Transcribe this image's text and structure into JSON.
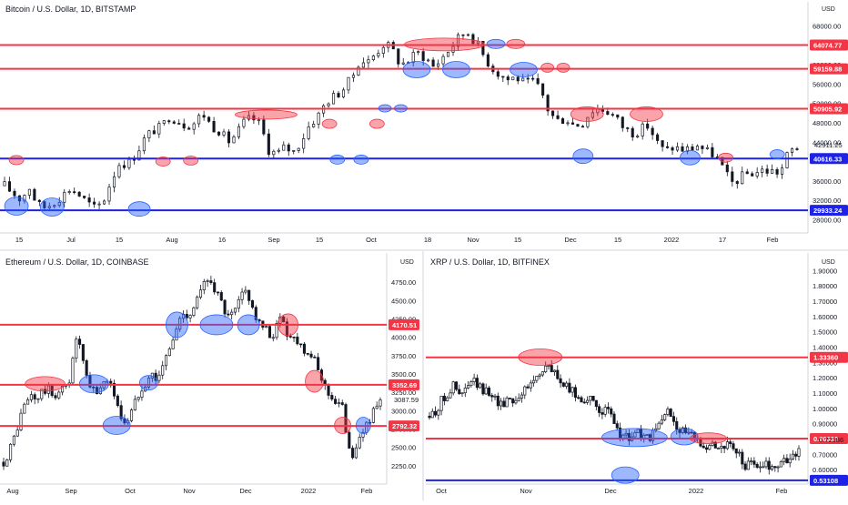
{
  "colors": {
    "support_red": "#f23645",
    "support_blue": "#1e22e6",
    "zone_red_fill": "rgba(242,54,69,0.45)",
    "zone_blue_fill": "rgba(41,98,255,0.45)",
    "candle": "#131722",
    "axis_line": "#d1d4dc"
  },
  "chart_data": [
    {
      "type": "candlestick",
      "title": "Bitcoin / U.S. Dollar, 1D, BITSTAMP",
      "currency_label": "USD",
      "ylim": [
        26000,
        70000
      ],
      "x_tick_labels": [
        "15",
        "Jul",
        "15",
        "Aug",
        "16",
        "Sep",
        "15",
        "Oct",
        "18",
        "Nov",
        "15",
        "Dec",
        "15",
        "2022",
        "17",
        "Feb"
      ],
      "y_tick_labels": [
        "68000.00",
        "64000.00",
        "60000.00",
        "56000.00",
        "52000.00",
        "48000.00",
        "44000.00",
        "36000.00",
        "32000.00",
        "28000.00"
      ],
      "y_tick_values": [
        68000,
        64000,
        60000,
        56000,
        52000,
        48000,
        44000,
        36000,
        32000,
        28000
      ],
      "current_price": "42911.25",
      "levels": [
        {
          "value": 64074.77,
          "label": "64074.77",
          "color": "red"
        },
        {
          "value": 59159.88,
          "label": "59159.88",
          "color": "red"
        },
        {
          "value": 50905.92,
          "label": "50905.92",
          "color": "red"
        },
        {
          "value": 40616.33,
          "label": "40616.33",
          "color": "blue"
        },
        {
          "value": 29933.24,
          "label": "29933.24",
          "color": "blue"
        }
      ],
      "price_path": [
        35000,
        33500,
        32200,
        34800,
        31000,
        30500,
        31800,
        33000,
        34500,
        33200,
        31500,
        30200,
        32000,
        36500,
        40000,
        39500,
        42000,
        44800,
        46500,
        47000,
        49500,
        48500,
        47500,
        48000,
        50000,
        47500,
        46500,
        44000,
        45500,
        48000,
        49000,
        47500,
        42500,
        41500,
        43000,
        42000,
        44500,
        47800,
        49500,
        52500,
        53500,
        55000,
        57000,
        61000,
        60500,
        62500,
        64500,
        63000,
        60000,
        61000,
        62500,
        61500,
        59500,
        61500,
        63500,
        65500,
        67000,
        65000,
        62000,
        59500,
        58000,
        57000,
        57500,
        56000,
        56500,
        54500,
        50000,
        48500,
        49000,
        47500,
        48000,
        50500,
        51000,
        50500,
        49000,
        47000,
        46000,
        46500,
        47500,
        44000,
        42000,
        43000,
        42500,
        42500,
        43500,
        42000,
        41500,
        38500,
        35500,
        36500,
        37500,
        37800,
        38200,
        38000,
        37800,
        42000,
        42911
      ]
    },
    {
      "type": "candlestick",
      "title": "Ethereum / U.S. Dollar, 1D, COINBASE",
      "currency_label": "USD",
      "ylim": [
        2050,
        4950
      ],
      "x_tick_labels": [
        "Aug",
        "Sep",
        "Oct",
        "Nov",
        "Dec",
        "2022",
        "Feb"
      ],
      "y_tick_labels": [
        "4750.00",
        "4500.00",
        "4250.00",
        "4000.00",
        "3750.00",
        "3500.00",
        "3250.00",
        "3000.00",
        "2750.00",
        "2500.00",
        "2250.00"
      ],
      "y_tick_values": [
        4750,
        4500,
        4250,
        4000,
        3750,
        3500,
        3250,
        3000,
        2750,
        2500,
        2250
      ],
      "current_price": "3087.59",
      "levels": [
        {
          "value": 4170.51,
          "label": "4170.51",
          "color": "red"
        },
        {
          "value": 3352.69,
          "label": "3352.69",
          "color": "red"
        },
        {
          "value": 2792.32,
          "label": "2792.32",
          "color": "red"
        }
      ],
      "price_path": [
        2300,
        2450,
        2650,
        2900,
        3100,
        3200,
        3150,
        3250,
        3300,
        3200,
        3250,
        3300,
        3400,
        3950,
        3900,
        3450,
        3300,
        3250,
        3350,
        3450,
        3300,
        3000,
        2850,
        2900,
        3100,
        3300,
        3400,
        3500,
        3450,
        3550,
        3800,
        3950,
        4200,
        4350,
        4300,
        4450,
        4600,
        4750,
        4800,
        4600,
        4450,
        4250,
        4300,
        4450,
        4650,
        4550,
        4300,
        4150,
        4100,
        4000,
        4150,
        4300,
        4050,
        4000,
        3950,
        3850,
        3800,
        3650,
        3500,
        3300,
        3200,
        3100,
        3050,
        2600,
        2400,
        2550,
        2750,
        2900,
        3000,
        3087
      ]
    },
    {
      "type": "candlestick",
      "title": "XRP / U.S. Dollar, 1D, BITFINEX",
      "currency_label": "USD",
      "ylim": [
        0.53,
        1.92
      ],
      "x_tick_labels": [
        "Oct",
        "Nov",
        "Dec",
        "2022",
        "Feb"
      ],
      "y_tick_labels": [
        "1.90000",
        "1.80000",
        "1.70000",
        "1.60000",
        "1.50000",
        "1.40000",
        "1.30000",
        "1.20000",
        "1.10000",
        "1.00000",
        "0.90000",
        "0.80000",
        "0.70000",
        "0.60000"
      ],
      "y_tick_values": [
        1.9,
        1.8,
        1.7,
        1.6,
        1.5,
        1.4,
        1.3,
        1.2,
        1.1,
        1.0,
        0.9,
        0.8,
        0.7,
        0.6
      ],
      "current_price": "0.72386",
      "levels": [
        {
          "value": 1.3336,
          "label": "1.33360",
          "color": "red"
        },
        {
          "value": 0.8033,
          "label": "0.80330",
          "color": "red"
        },
        {
          "value": 0.53108,
          "label": "0.53108",
          "color": "blue"
        }
      ],
      "price_path": [
        0.95,
        0.98,
        1.05,
        1.1,
        1.15,
        1.08,
        1.12,
        1.18,
        1.15,
        1.1,
        1.12,
        1.05,
        1.02,
        1.08,
        1.05,
        1.1,
        1.12,
        1.18,
        1.22,
        1.28,
        1.25,
        1.22,
        1.15,
        1.12,
        1.1,
        1.05,
        1.08,
        1.02,
        1.0,
        0.98,
        0.95,
        0.85,
        0.82,
        0.8,
        0.85,
        0.82,
        0.8,
        0.83,
        0.9,
        0.98,
        0.95,
        0.88,
        0.85,
        0.82,
        0.8,
        0.78,
        0.76,
        0.77,
        0.75,
        0.76,
        0.74,
        0.7,
        0.62,
        0.63,
        0.64,
        0.62,
        0.63,
        0.62,
        0.64,
        0.66,
        0.7,
        0.72
      ]
    }
  ]
}
